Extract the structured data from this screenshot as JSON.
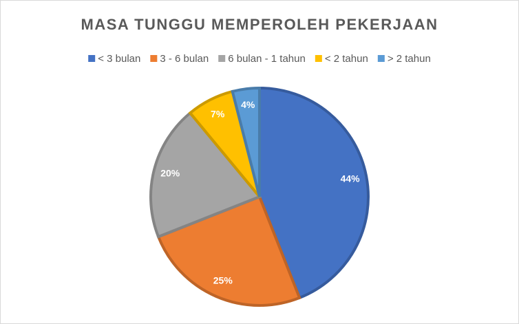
{
  "chart_data": {
    "type": "pie",
    "title": "MASA TUNGGU MEMPEROLEH PEKERJAAN",
    "categories": [
      "< 3 bulan",
      "3 - 6 bulan",
      "6 bulan - 1 tahun",
      "< 2 tahun",
      "> 2 tahun"
    ],
    "values": [
      44,
      25,
      20,
      7,
      4
    ],
    "value_labels": [
      "44%",
      "25%",
      "20%",
      "7%",
      "4%"
    ],
    "colors": [
      "#4472c4",
      "#ed7d31",
      "#a5a5a5",
      "#ffc000",
      "#5b9bd5"
    ],
    "legend": "top"
  }
}
